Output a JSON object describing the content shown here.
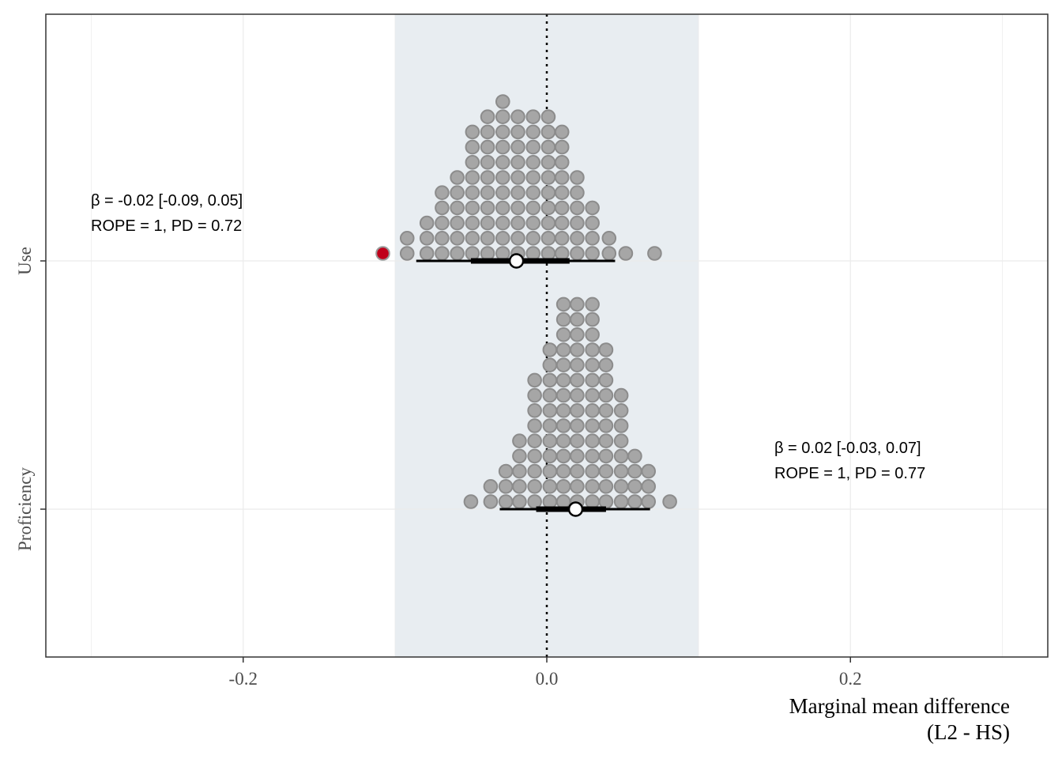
{
  "chart_data": {
    "type": "dotplot",
    "xlabel_lines": [
      "Marginal mean difference",
      "(L2 - HS)"
    ],
    "ylabel": "",
    "xlim": [
      -0.33,
      0.33
    ],
    "x_ticks": [
      -0.2,
      0.0,
      0.2
    ],
    "x_tick_labels": [
      "-0.2",
      "0.0",
      "0.2"
    ],
    "categories": [
      "Use",
      "Proficiency"
    ],
    "rope": [
      -0.1,
      0.1
    ],
    "reference_line": 0.0,
    "grid": true,
    "colors": {
      "dot_fill": "#a6a6a6",
      "dot_stroke": "#8c8c8c",
      "highlight_dot": "#c0001a",
      "rope_band": "#e8edf1",
      "interval": "#000000",
      "point_fill": "#ffffff",
      "grid": "#ebebeb",
      "panel_border": "#333333"
    },
    "series": [
      {
        "category": "Use",
        "estimate": -0.02,
        "inner_interval": [
          -0.05,
          0.015
        ],
        "outer_interval": [
          -0.086,
          0.045
        ],
        "annotation_lines": [
          "β = -0.02 [-0.09, 0.05]",
          "ROPE = 1, PD = 0.72"
        ],
        "dot_columns": [
          {
            "x": -0.108,
            "count": 1,
            "highlight": true
          },
          {
            "x": -0.092,
            "count": 2
          },
          {
            "x": -0.079,
            "count": 3
          },
          {
            "x": -0.069,
            "count": 5
          },
          {
            "x": -0.059,
            "count": 6
          },
          {
            "x": -0.049,
            "count": 9
          },
          {
            "x": -0.039,
            "count": 10
          },
          {
            "x": -0.029,
            "count": 11
          },
          {
            "x": -0.019,
            "count": 10
          },
          {
            "x": -0.009,
            "count": 10
          },
          {
            "x": 0.001,
            "count": 10
          },
          {
            "x": 0.01,
            "count": 9
          },
          {
            "x": 0.02,
            "count": 6
          },
          {
            "x": 0.03,
            "count": 4
          },
          {
            "x": 0.041,
            "count": 2
          },
          {
            "x": 0.052,
            "count": 1
          },
          {
            "x": 0.071,
            "count": 1
          }
        ]
      },
      {
        "category": "Proficiency",
        "estimate": 0.019,
        "inner_interval": [
          -0.007,
          0.039
        ],
        "outer_interval": [
          -0.031,
          0.068
        ],
        "annotation_lines": [
          "β = 0.02 [-0.03, 0.07]",
          "ROPE = 1, PD = 0.77"
        ],
        "dot_columns": [
          {
            "x": -0.05,
            "count": 1
          },
          {
            "x": -0.037,
            "count": 2
          },
          {
            "x": -0.027,
            "count": 3
          },
          {
            "x": -0.018,
            "count": 5
          },
          {
            "x": -0.008,
            "count": 9
          },
          {
            "x": 0.002,
            "count": 11
          },
          {
            "x": 0.011,
            "count": 14
          },
          {
            "x": 0.02,
            "count": 14
          },
          {
            "x": 0.03,
            "count": 14
          },
          {
            "x": 0.039,
            "count": 11
          },
          {
            "x": 0.049,
            "count": 8
          },
          {
            "x": 0.058,
            "count": 4
          },
          {
            "x": 0.067,
            "count": 3
          },
          {
            "x": 0.081,
            "count": 1
          }
        ]
      }
    ]
  }
}
